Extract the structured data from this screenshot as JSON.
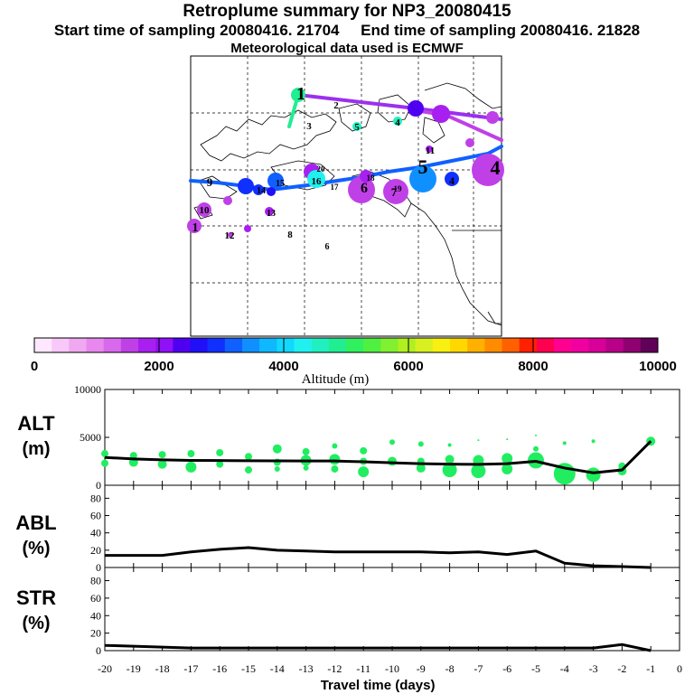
{
  "header": {
    "title": "Retroplume summary for NP3_20080415",
    "start_label": "Start time of sampling 20080416. 21704",
    "end_label": "End time of sampling 20080416. 21828",
    "met_label": "Meteorological data used is ECMWF"
  },
  "colorbar": {
    "title": "Altitude (m)",
    "min": 0,
    "max": 10000,
    "tick_values": [
      0,
      2000,
      4000,
      6000,
      8000,
      10000
    ],
    "tick_labels": [
      "0",
      "2000",
      "4000",
      "6000",
      "8000",
      "10000"
    ],
    "colors": [
      "#ffe8ff",
      "#f8c8f8",
      "#f0a8f0",
      "#e888ee",
      "#d868ec",
      "#c040e8",
      "#a820f0",
      "#9010f8",
      "#5000f0",
      "#2010f8",
      "#1030ff",
      "#1060ff",
      "#1090ff",
      "#10b8ff",
      "#10d8ff",
      "#20f0f0",
      "#20f0c0",
      "#20ee90",
      "#30f060",
      "#50f040",
      "#80f030",
      "#b0f020",
      "#d8f020",
      "#f8f010",
      "#ffd800",
      "#ffb000",
      "#ff8c00",
      "#ff6000",
      "#ff2000",
      "#ff0050",
      "#ff0090",
      "#f000a0",
      "#d80098",
      "#b80088",
      "#900070",
      "#600058"
    ]
  },
  "map": {
    "label_numbers": [
      "1",
      "2",
      "3",
      "4",
      "5",
      "6",
      "7",
      "8",
      "9",
      "10",
      "11",
      "12",
      "13",
      "14",
      "15",
      "16",
      "17",
      "18",
      "19",
      "20"
    ]
  },
  "chart_data": [
    {
      "type": "scatter",
      "name": "ALT",
      "ylabel": "ALT",
      "yunit": "(m)",
      "ylim": [
        0,
        10000
      ],
      "ytick_labels": [
        "10000",
        "5000",
        "0"
      ],
      "ytick_values": [
        10000,
        5000,
        0
      ],
      "x": [
        -20,
        -19,
        -18,
        -17,
        -16,
        -15,
        -14,
        -13,
        -12,
        -11,
        -10,
        -9,
        -8,
        -7,
        -6,
        -5,
        -4,
        -3,
        -2,
        -1
      ],
      "line_values": [
        2900,
        2750,
        2650,
        2600,
        2580,
        2560,
        2550,
        2540,
        2530,
        2450,
        2350,
        2250,
        2200,
        2180,
        2250,
        2500,
        1800,
        1300,
        1600,
        4600
      ],
      "points": [
        {
          "x": -20,
          "y": 3300,
          "s": 4
        },
        {
          "x": -20,
          "y": 2300,
          "s": 4
        },
        {
          "x": -19,
          "y": 3100,
          "s": 4
        },
        {
          "x": -19,
          "y": 2400,
          "s": 5
        },
        {
          "x": -18,
          "y": 3200,
          "s": 4
        },
        {
          "x": -18,
          "y": 2200,
          "s": 5
        },
        {
          "x": -17,
          "y": 3300,
          "s": 4
        },
        {
          "x": -17,
          "y": 1900,
          "s": 6
        },
        {
          "x": -16,
          "y": 3400,
          "s": 4
        },
        {
          "x": -16,
          "y": 2200,
          "s": 4
        },
        {
          "x": -15,
          "y": 3000,
          "s": 4
        },
        {
          "x": -15,
          "y": 1600,
          "s": 4
        },
        {
          "x": -14,
          "y": 3800,
          "s": 5
        },
        {
          "x": -14,
          "y": 2400,
          "s": 4
        },
        {
          "x": -14,
          "y": 1700,
          "s": 3
        },
        {
          "x": -13,
          "y": 3500,
          "s": 4
        },
        {
          "x": -13,
          "y": 2600,
          "s": 6
        },
        {
          "x": -13,
          "y": 1800,
          "s": 3
        },
        {
          "x": -12,
          "y": 4100,
          "s": 3
        },
        {
          "x": -12,
          "y": 2700,
          "s": 6
        },
        {
          "x": -12,
          "y": 1700,
          "s": 4
        },
        {
          "x": -11,
          "y": 3600,
          "s": 4
        },
        {
          "x": -11,
          "y": 2500,
          "s": 4
        },
        {
          "x": -11,
          "y": 1400,
          "s": 6
        },
        {
          "x": -10,
          "y": 4500,
          "s": 3
        },
        {
          "x": -10,
          "y": 2500,
          "s": 5
        },
        {
          "x": -9,
          "y": 4300,
          "s": 3
        },
        {
          "x": -9,
          "y": 2500,
          "s": 4
        },
        {
          "x": -9,
          "y": 1800,
          "s": 5
        },
        {
          "x": -8,
          "y": 4200,
          "s": 2
        },
        {
          "x": -8,
          "y": 2700,
          "s": 5
        },
        {
          "x": -8,
          "y": 1600,
          "s": 8
        },
        {
          "x": -7,
          "y": 4700,
          "s": 1
        },
        {
          "x": -7,
          "y": 2600,
          "s": 6
        },
        {
          "x": -7,
          "y": 1500,
          "s": 8
        },
        {
          "x": -6,
          "y": 4800,
          "s": 1
        },
        {
          "x": -6,
          "y": 2800,
          "s": 6
        },
        {
          "x": -6,
          "y": 1700,
          "s": 6
        },
        {
          "x": -5,
          "y": 5200,
          "s": 1
        },
        {
          "x": -5,
          "y": 3800,
          "s": 3
        },
        {
          "x": -5,
          "y": 2600,
          "s": 9
        },
        {
          "x": -4,
          "y": 4400,
          "s": 2
        },
        {
          "x": -4,
          "y": 1200,
          "s": 12
        },
        {
          "x": -3,
          "y": 4600,
          "s": 2
        },
        {
          "x": -3,
          "y": 1100,
          "s": 8
        },
        {
          "x": -2,
          "y": 2000,
          "s": 4
        },
        {
          "x": -2,
          "y": 1500,
          "s": 5
        },
        {
          "x": -1,
          "y": 4600,
          "s": 5
        }
      ]
    },
    {
      "type": "line",
      "name": "ABL",
      "ylabel": "ABL",
      "yunit": "(%)",
      "ylim": [
        0,
        95
      ],
      "ytick_labels": [
        "80",
        "60",
        "40",
        "20",
        "0"
      ],
      "ytick_values": [
        80,
        60,
        40,
        20,
        0
      ],
      "x": [
        -20,
        -19,
        -18,
        -17,
        -16,
        -15,
        -14,
        -13,
        -12,
        -11,
        -10,
        -9,
        -8,
        -7,
        -6,
        -5,
        -4,
        -3,
        -2,
        -1
      ],
      "values": [
        14,
        14,
        14,
        18,
        21,
        23,
        20,
        19,
        18,
        18,
        18,
        18,
        17,
        18,
        15,
        19,
        5,
        2,
        1,
        0
      ]
    },
    {
      "type": "line",
      "name": "STR",
      "ylabel": "STR",
      "yunit": "(%)",
      "ylim": [
        0,
        95
      ],
      "ytick_labels": [
        "80",
        "60",
        "40",
        "20",
        "0"
      ],
      "ytick_values": [
        80,
        60,
        40,
        20,
        0
      ],
      "xlabel": "Travel time (days)",
      "xtick_labels": [
        "-20",
        "-19",
        "-18",
        "-17",
        "-16",
        "-15",
        "-14",
        "-13",
        "-12",
        "-11",
        "-10",
        "-9",
        "-8",
        "-7",
        "-6",
        "-5",
        "-4",
        "-3",
        "-2",
        "-1",
        "0"
      ],
      "x": [
        -20,
        -19,
        -18,
        -17,
        -16,
        -15,
        -14,
        -13,
        -12,
        -11,
        -10,
        -9,
        -8,
        -7,
        -6,
        -5,
        -4,
        -3,
        -2,
        -1
      ],
      "values": [
        6,
        5,
        4,
        3,
        3,
        3,
        3,
        3,
        3,
        3,
        3,
        3,
        3,
        3,
        3,
        3,
        3,
        3,
        7,
        0
      ]
    }
  ]
}
